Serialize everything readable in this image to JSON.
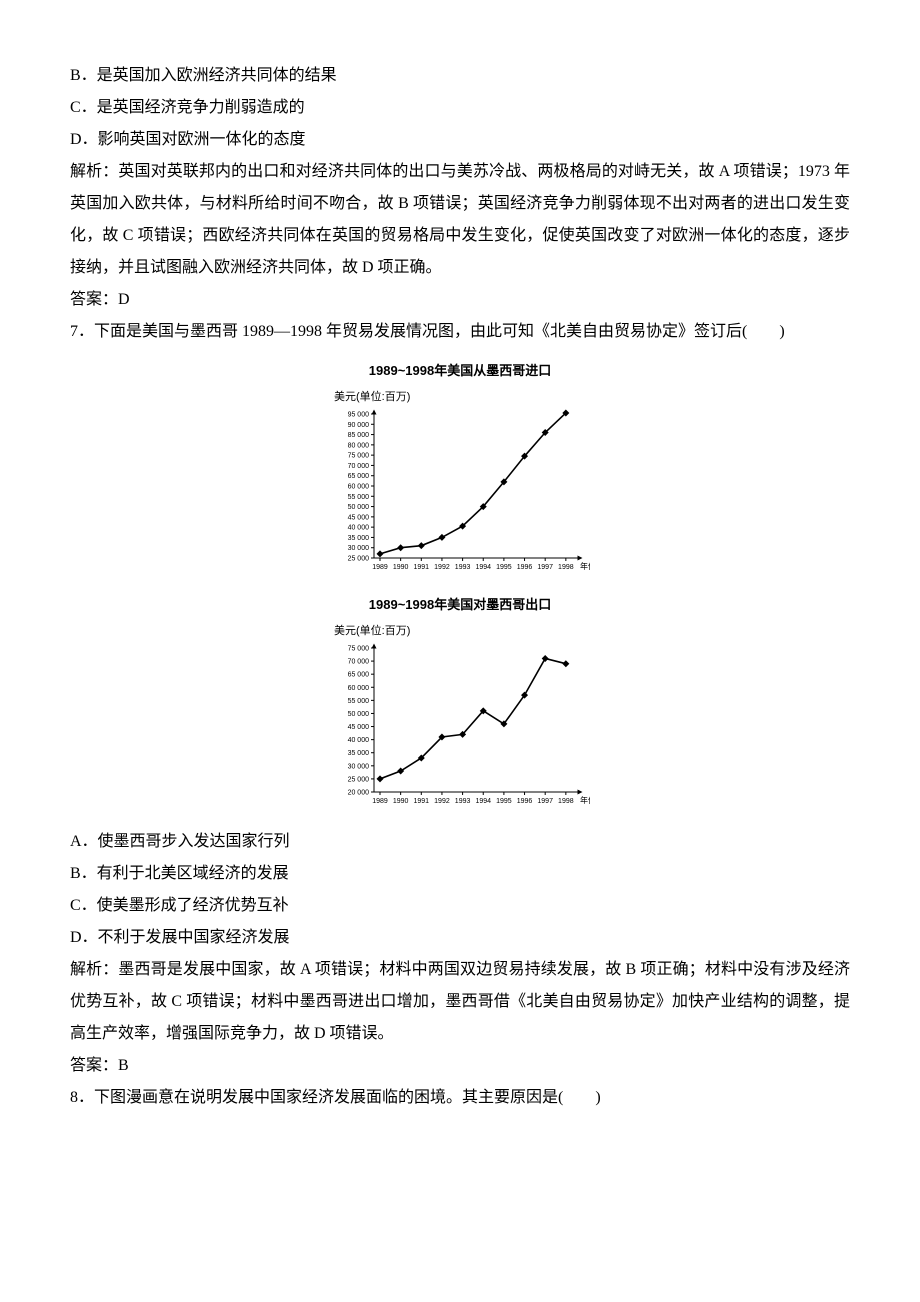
{
  "q6": {
    "choices": {
      "B": "B．是英国加入欧洲经济共同体的结果",
      "C": "C．是英国经济竞争力削弱造成的",
      "D": "D．影响英国对欧洲一体化的态度"
    },
    "analysis_label": "解析：",
    "analysis_text": "英国对英联邦内的出口和对经济共同体的出口与美苏冷战、两极格局的对峙无关，故 A 项错误；1973 年英国加入欧共体，与材料所给时间不吻合，故 B 项错误；英国经济竞争力削弱体现不出对两者的进出口发生变化，故 C 项错误；西欧经济共同体在英国的贸易格局中发生变化，促使英国改变了对欧洲一体化的态度，逐步接纳，并且试图融入欧洲经济共同体，故 D 项正确。",
    "answer_label": "答案：",
    "answer": "D"
  },
  "q7": {
    "stem": "7．下面是美国与墨西哥 1989—1998 年贸易发展情况图，由此可知《北美自由贸易协定》签订后(　　)",
    "chart1": {
      "title": "1989~1998年美国从墨西哥进口",
      "ylabel": "美元(单位:百万)",
      "xlabel": "年份",
      "years": [
        "1989",
        "1990",
        "1991",
        "1992",
        "1993",
        "1994",
        "1995",
        "1996",
        "1997",
        "1998"
      ],
      "y_min": 25000,
      "y_max": 95000,
      "y_step": 5000,
      "values": [
        27000,
        30000,
        31000,
        35000,
        40500,
        50000,
        62000,
        74500,
        86000,
        95500
      ],
      "line_color": "#000000",
      "marker_fill": "#000000",
      "marker_size": 3.5,
      "line_width": 1.6,
      "axis_color": "#000000",
      "axis_width": 1,
      "bg_color": "#ffffff",
      "tick_fontsize": 7,
      "arrow": true
    },
    "chart2": {
      "title": "1989~1998年美国对墨西哥出口",
      "ylabel": "美元(单位:百万)",
      "xlabel": "年份",
      "years": [
        "1989",
        "1990",
        "1991",
        "1992",
        "1993",
        "1994",
        "1995",
        "1996",
        "1997",
        "1998"
      ],
      "y_min": 20000,
      "y_max": 75000,
      "y_step": 5000,
      "values": [
        25000,
        28000,
        33000,
        41000,
        42000,
        51000,
        46000,
        57000,
        71000,
        69000
      ],
      "line_color": "#000000",
      "marker_fill": "#000000",
      "marker_size": 3.5,
      "line_width": 1.6,
      "axis_color": "#000000",
      "axis_width": 1,
      "bg_color": "#ffffff",
      "tick_fontsize": 7,
      "arrow": true
    },
    "choices": {
      "A": "A．使墨西哥步入发达国家行列",
      "B": "B．有利于北美区域经济的发展",
      "C": "C．使美墨形成了经济优势互补",
      "D": "D．不利于发展中国家经济发展"
    },
    "analysis_label": "解析：",
    "analysis_text": "墨西哥是发展中国家，故 A 项错误；材料中两国双边贸易持续发展，故 B 项正确；材料中没有涉及经济优势互补，故 C 项错误；材料中墨西哥进出口增加，墨西哥借《北美自由贸易协定》加快产业结构的调整，提高生产效率，增强国际竞争力，故 D 项错误。",
    "answer_label": "答案：",
    "answer": "B"
  },
  "q8": {
    "stem": "8．下图漫画意在说明发展中国家经济发展面临的困境。其主要原因是(　　)"
  }
}
